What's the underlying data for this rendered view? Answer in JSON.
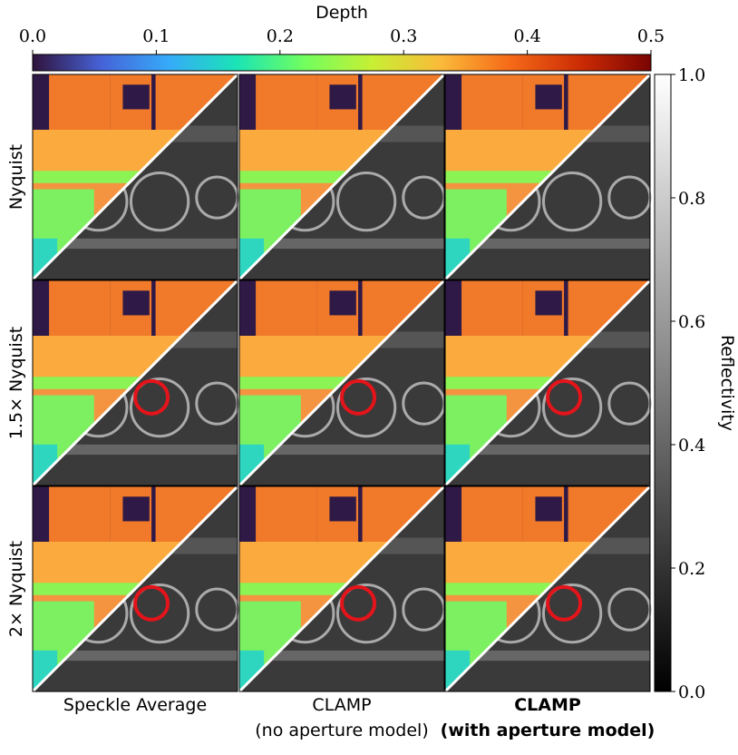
{
  "depth_colorbar": {
    "title": "Depth",
    "lim": [
      0,
      0.5
    ],
    "ticks": [
      {
        "value": 0,
        "label": "0.0"
      },
      0.1,
      0.2,
      0.3,
      0.4,
      0.5
    ]
  },
  "reflectivity_colorbar": {
    "title": "Reflectivity",
    "lim": [
      0,
      1
    ],
    "ticks": [
      {
        "value": 0,
        "label": "0.0"
      },
      0.2,
      0.4,
      0.6,
      0.8,
      {
        "value": 1,
        "label": "1.0"
      }
    ]
  },
  "rows": [
    "Nyquist",
    "1.5× Nyquist",
    "2× Nyquist"
  ],
  "columns": [
    {
      "title": "Speckle Average"
    },
    {
      "title": "CLAMP",
      "subtitle": "(no aperture model)"
    },
    {
      "title": "CLAMP",
      "subtitle": "(with aperture model)"
    }
  ]
}
